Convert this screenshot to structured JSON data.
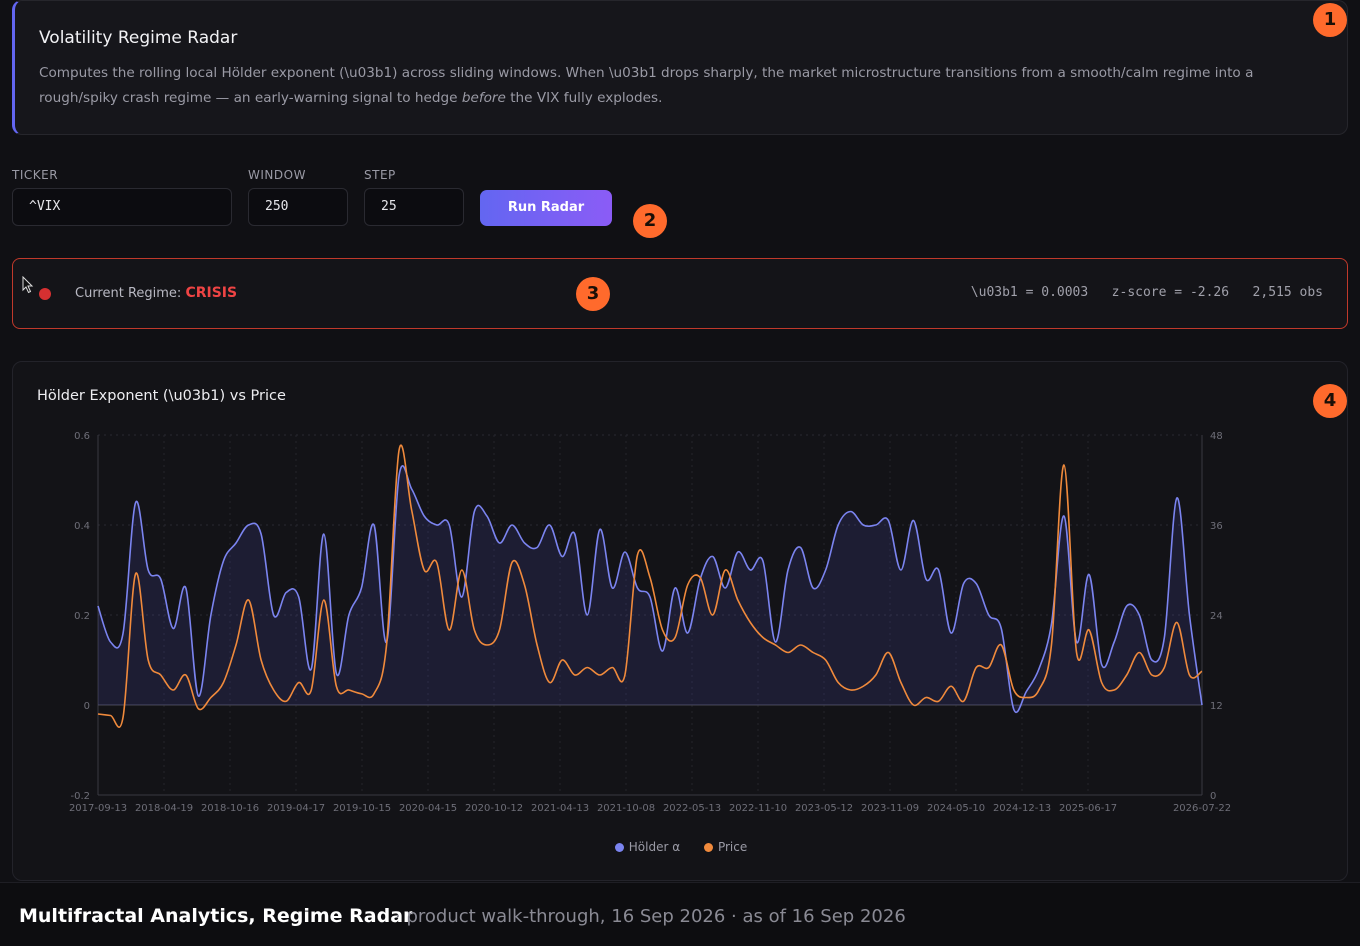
{
  "info": {
    "title": "Volatility Regime Radar",
    "desc_1": "Computes the rolling local Hölder exponent (\\u03b1) across sliding windows. When \\u03b1 drops sharply, the market microstructure transitions from a smooth/calm regime into a rough/spiky crash regime — an early-warning signal to hedge ",
    "desc_em": "before",
    "desc_2": " the VIX fully explodes."
  },
  "form": {
    "ticker_label": "TICKER",
    "ticker_value": "^VIX",
    "window_label": "WINDOW",
    "window_value": "250",
    "step_label": "STEP",
    "step_value": "25",
    "run_label": "Run Radar"
  },
  "regime": {
    "prefix": "Current Regime: ",
    "value": "CRISIS",
    "stats": "\\u03b1 = 0.0003   z-score = -2.26   2,515 obs",
    "status_color": "#d63031"
  },
  "badges": [
    "1",
    "2",
    "3",
    "4"
  ],
  "chart_title": "Hölder Exponent (\\u03b1) vs Price",
  "legend": {
    "a": "Hölder α",
    "b": "Price"
  },
  "footer": {
    "brand": "Multifractal Analytics, Regime Radar",
    "meta": "· product walk-through, 16 Sep 2026 · as of 16 Sep 2026"
  },
  "chart_data": {
    "type": "line",
    "x_tick_labels": [
      "2017-09-13",
      "2018-04-19",
      "2018-10-16",
      "2019-04-17",
      "2019-10-15",
      "2020-04-15",
      "2020-10-12",
      "2021-04-13",
      "2021-10-08",
      "2022-05-13",
      "2022-11-10",
      "2023-05-12",
      "2023-11-09",
      "2024-05-10",
      "2024-12-13",
      "2025-06-17",
      "2026-07-22"
    ],
    "y_left": {
      "min": -0.2,
      "max": 0.6,
      "ticks": [
        "-0.2",
        "0",
        "0.2",
        "0.4",
        "0.6"
      ]
    },
    "y_right": {
      "min": 0,
      "max": 48,
      "ticks": [
        "0",
        "12",
        "24",
        "36",
        "48"
      ]
    },
    "series": [
      {
        "name": "Hölder α",
        "color": "#7b84f0",
        "axis": "left",
        "values": [
          0.22,
          0.14,
          0.16,
          0.45,
          0.3,
          0.28,
          0.17,
          0.26,
          0.02,
          0.2,
          0.32,
          0.36,
          0.4,
          0.38,
          0.2,
          0.25,
          0.24,
          0.08,
          0.38,
          0.07,
          0.2,
          0.26,
          0.4,
          0.14,
          0.51,
          0.48,
          0.42,
          0.4,
          0.4,
          0.24,
          0.43,
          0.42,
          0.36,
          0.4,
          0.36,
          0.35,
          0.4,
          0.33,
          0.38,
          0.2,
          0.39,
          0.26,
          0.34,
          0.26,
          0.24,
          0.12,
          0.26,
          0.16,
          0.28,
          0.33,
          0.26,
          0.34,
          0.3,
          0.32,
          0.14,
          0.3,
          0.35,
          0.26,
          0.3,
          0.4,
          0.43,
          0.4,
          0.4,
          0.41,
          0.3,
          0.41,
          0.28,
          0.3,
          0.16,
          0.27,
          0.27,
          0.2,
          0.17,
          -0.01,
          0.03,
          0.08,
          0.18,
          0.42,
          0.14,
          0.29,
          0.09,
          0.14,
          0.22,
          0.2,
          0.1,
          0.15,
          0.46,
          0.2,
          0.0
        ]
      },
      {
        "name": "Price",
        "color": "#f08a3c",
        "axis": "right",
        "values": [
          10.8,
          10.6,
          10.4,
          29.5,
          18.0,
          16.0,
          14.0,
          16.0,
          11.5,
          13.0,
          15.0,
          20.0,
          26.0,
          18.0,
          14.0,
          12.5,
          15.0,
          14.0,
          26.0,
          14.5,
          14.0,
          13.5,
          13.5,
          20.0,
          46.0,
          38.0,
          30.0,
          31.0,
          22.0,
          30.0,
          22.0,
          20.0,
          22.0,
          31.0,
          28.0,
          20.0,
          15.0,
          18.0,
          16.0,
          17.0,
          16.0,
          17.0,
          16.0,
          32.0,
          29.0,
          22.0,
          21.0,
          28.0,
          29.0,
          24.0,
          30.0,
          26.0,
          23.0,
          21.0,
          20.0,
          19.0,
          20.0,
          19.0,
          18.0,
          15.0,
          14.0,
          14.5,
          16.0,
          19.0,
          15.0,
          12.0,
          13.0,
          12.5,
          14.5,
          12.5,
          17.0,
          17.0,
          20.0,
          14.0,
          13.0,
          14.0,
          20.0,
          44.0,
          19.0,
          22.0,
          15.0,
          14.0,
          16.0,
          19.0,
          16.0,
          17.0,
          23.0,
          16.0,
          16.5
        ]
      }
    ],
    "grid": true,
    "legend_position": "bottom-center"
  }
}
